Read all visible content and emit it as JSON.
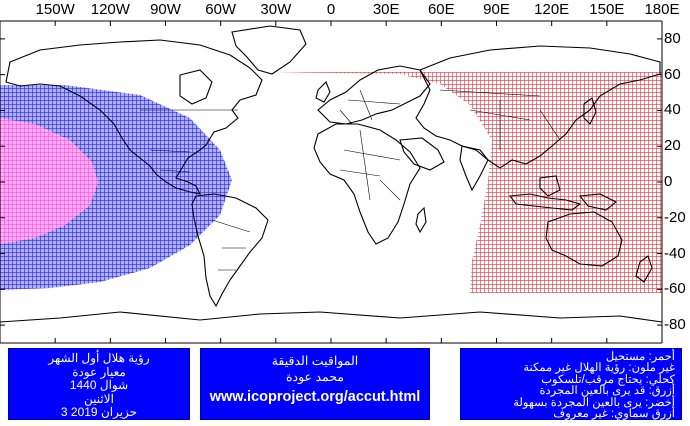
{
  "map": {
    "lon_labels": [
      "150W",
      "120W",
      "90W",
      "60W",
      "30W",
      "0",
      "30E",
      "60E",
      "90E",
      "120E",
      "150E",
      "180E"
    ],
    "lat_labels": [
      "80",
      "60",
      "40",
      "20",
      "0",
      "-20",
      "-40",
      "-60",
      "-80"
    ],
    "colors": {
      "impossible": "#e8323c",
      "optical_aid": "#2a2ae0",
      "naked_eye_perfect_clarity": "#ff4fe0",
      "background": "#ffffff",
      "grid": "#000000"
    }
  },
  "panels": {
    "left": {
      "line1": "رؤية هلال أول الشهر",
      "line2": "معيار عودة",
      "line3": "شوال 1440",
      "line4": "الاثنين",
      "line5": "3 حزيران 2019"
    },
    "middle": {
      "line1": "المواقيت الدقيقة",
      "line2": "محمد عودة",
      "url": "www.icoproject.org/accut.html"
    },
    "right": {
      "line1": "أحمر: مستحيل",
      "line2": "غير ملون: رؤية الهلال غير ممكنة",
      "line3": "كحلي: يحتاج مرقب/تلسكوب",
      "line4": "أزرق: قد يرى بالعين المجردة",
      "line5": "أخضر: يرى بالعين المجردة بسهولة",
      "line6": "أزرق سماوي: غير معروف"
    }
  }
}
